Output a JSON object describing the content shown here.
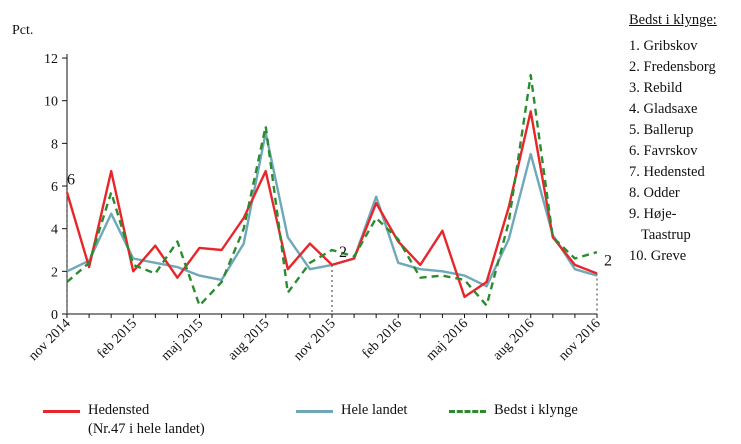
{
  "chart_data": {
    "type": "line",
    "ylabel": "Pct.",
    "ylim": [
      0,
      12
    ],
    "yticks": [
      0,
      2,
      4,
      6,
      8,
      10,
      12
    ],
    "x_tick_labels": [
      {
        "index": 0,
        "label": "nov 2014"
      },
      {
        "index": 3,
        "label": "feb 2015"
      },
      {
        "index": 6,
        "label": "maj 2015"
      },
      {
        "index": 9,
        "label": "aug 2015"
      },
      {
        "index": 12,
        "label": "nov 2015"
      },
      {
        "index": 15,
        "label": "feb 2016"
      },
      {
        "index": 18,
        "label": "maj 2016"
      },
      {
        "index": 21,
        "label": "aug 2016"
      },
      {
        "index": 24,
        "label": "nov 2016"
      }
    ],
    "series": [
      {
        "name": "Hedensted",
        "color": "#e8262a",
        "dash": "solid",
        "values": [
          5.7,
          2.2,
          6.7,
          2.0,
          3.2,
          1.7,
          3.1,
          3.0,
          4.5,
          6.7,
          2.1,
          3.3,
          2.3,
          2.6,
          5.2,
          3.4,
          2.3,
          3.9,
          0.8,
          1.5,
          5.0,
          9.5,
          3.6,
          2.3,
          1.9
        ]
      },
      {
        "name": "Hele landet",
        "color": "#6fa8b8",
        "dash": "solid",
        "values": [
          2.0,
          2.5,
          4.7,
          2.6,
          2.4,
          2.2,
          1.8,
          1.6,
          3.3,
          8.5,
          3.6,
          2.1,
          2.3,
          2.6,
          5.5,
          2.4,
          2.1,
          2.0,
          1.8,
          1.3,
          3.5,
          7.5,
          3.7,
          2.1,
          1.8
        ]
      },
      {
        "name": "Bedst i klynge",
        "color": "#2a8c2e",
        "dash": "dashed",
        "values": [
          1.5,
          2.4,
          5.7,
          2.3,
          1.9,
          3.4,
          0.4,
          1.5,
          4.0,
          8.8,
          1.0,
          2.4,
          3.0,
          2.7,
          4.5,
          3.5,
          1.7,
          1.8,
          1.6,
          0.4,
          4.3,
          11.2,
          3.6,
          2.6,
          2.9
        ]
      }
    ],
    "annotations": [
      {
        "index": 0,
        "value": 5.7,
        "label": "6"
      },
      {
        "index": 12,
        "value": 2.3,
        "label": "2"
      },
      {
        "index": 24,
        "value": 1.9,
        "label": "2"
      }
    ],
    "legend": {
      "position": "bottom",
      "hedensted_label": "Hedensted",
      "hedensted_sublabel": "(Nr.47 i hele landet)",
      "landet_label": "Hele landet",
      "klynge_label": "Bedst i klynge"
    },
    "cluster_list": {
      "title": "Bedst i klynge:",
      "items": [
        "1. Gribskov",
        "2. Fredensborg",
        "3. Rebild",
        "4. Gladsaxe",
        "5. Ballerup",
        "6. Favrskov",
        "7. Hedensted",
        "8. Odder",
        "9. Høje-",
        "Taastrup",
        "10. Greve"
      ]
    }
  }
}
